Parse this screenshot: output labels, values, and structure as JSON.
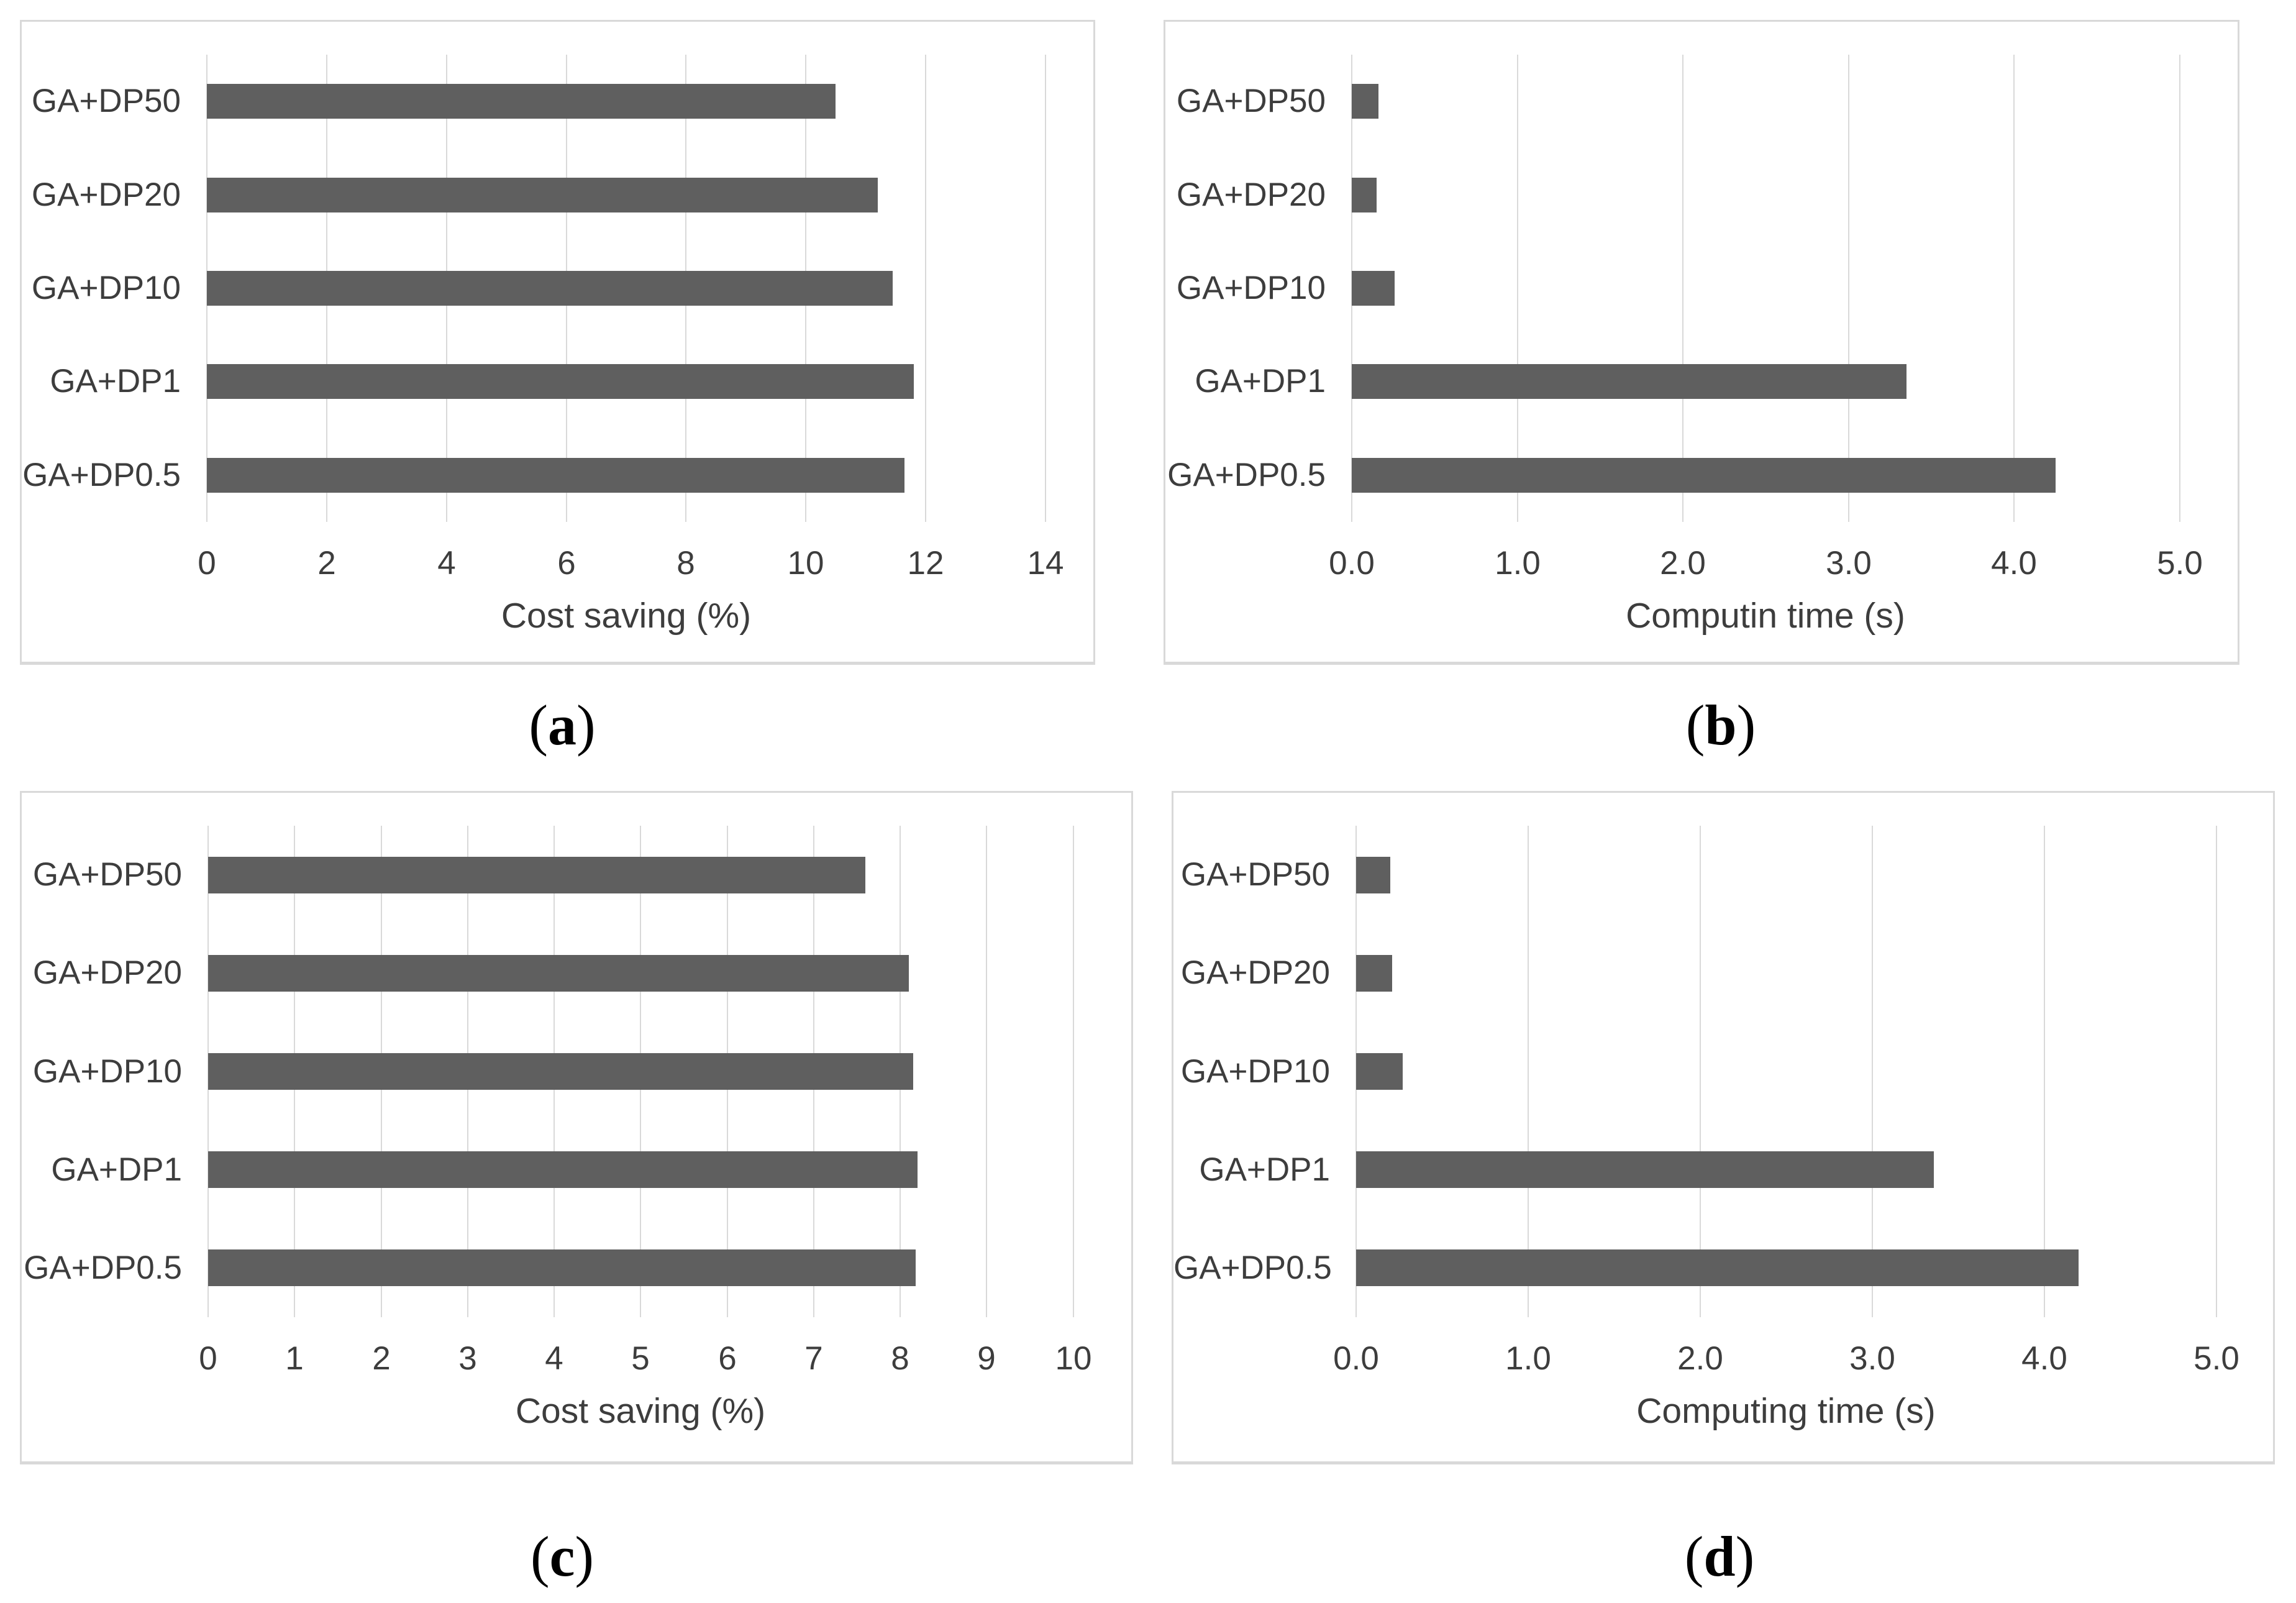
{
  "figure": {
    "background": "#ffffff",
    "captions": [
      {
        "pre": "(",
        "label": "a",
        "post": ")"
      },
      {
        "pre": "(",
        "label": "b",
        "post": ")"
      },
      {
        "pre": "(",
        "label": "c",
        "post": ")"
      },
      {
        "pre": "(",
        "label": "d",
        "post": ")"
      }
    ]
  },
  "colors": {
    "bar": "#5f5f5f",
    "gridline": "#d9d9d9",
    "panel_border": "#d9d9d9",
    "axis_text": "#3d3d3d",
    "caption_text": "#000000"
  },
  "chart_data": [
    {
      "panel": "a",
      "type": "bar",
      "orientation": "horizontal",
      "title": "",
      "categories": [
        "GA+DP50",
        "GA+DP20",
        "GA+DP10",
        "GA+DP1",
        "GA+DP0.5"
      ],
      "values": [
        10.5,
        11.2,
        11.45,
        11.8,
        11.65
      ],
      "xlabel": "Cost saving (%)",
      "xtick_labels": [
        "0",
        "2",
        "4",
        "6",
        "8",
        "10",
        "12",
        "14"
      ],
      "xtick_values": [
        0,
        2,
        4,
        6,
        8,
        10,
        12,
        14
      ],
      "xlim": [
        0,
        14.8
      ],
      "grid": true,
      "legend": false
    },
    {
      "panel": "b",
      "type": "bar",
      "orientation": "horizontal",
      "title": "",
      "categories": [
        "GA+DP50",
        "GA+DP20",
        "GA+DP10",
        "GA+DP1",
        "GA+DP0.5"
      ],
      "values": [
        0.16,
        0.15,
        0.26,
        3.35,
        4.25
      ],
      "xlabel": "Computin time (s)",
      "xtick_labels": [
        "0.0",
        "1.0",
        "2.0",
        "3.0",
        "4.0",
        "5.0"
      ],
      "xtick_values": [
        0,
        1,
        2,
        3,
        4,
        5
      ],
      "xlim": [
        0,
        5.35
      ],
      "grid": true,
      "legend": false
    },
    {
      "panel": "c",
      "type": "bar",
      "orientation": "horizontal",
      "title": "",
      "categories": [
        "GA+DP50",
        "GA+DP20",
        "GA+DP10",
        "GA+DP1",
        "GA+DP0.5"
      ],
      "values": [
        7.6,
        8.1,
        8.15,
        8.2,
        8.18
      ],
      "xlabel": "Cost saving (%)",
      "xtick_labels": [
        "0",
        "1",
        "2",
        "3",
        "4",
        "5",
        "6",
        "7",
        "8",
        "9",
        "10"
      ],
      "xtick_values": [
        0,
        1,
        2,
        3,
        4,
        5,
        6,
        7,
        8,
        9,
        10
      ],
      "xlim": [
        0,
        10.67
      ],
      "grid": true,
      "legend": false
    },
    {
      "panel": "d",
      "type": "bar",
      "orientation": "horizontal",
      "title": "",
      "categories": [
        "GA+DP50",
        "GA+DP20",
        "GA+DP10",
        "GA+DP1",
        "GA+DP0.5"
      ],
      "values": [
        0.2,
        0.21,
        0.27,
        3.36,
        4.2
      ],
      "xlabel": "Computing time (s)",
      "xtick_labels": [
        "0.0",
        "1.0",
        "2.0",
        "3.0",
        "4.0",
        "5.0"
      ],
      "xtick_values": [
        0,
        1,
        2,
        3,
        4,
        5
      ],
      "xlim": [
        0,
        5.33
      ],
      "grid": true,
      "legend": false
    }
  ]
}
